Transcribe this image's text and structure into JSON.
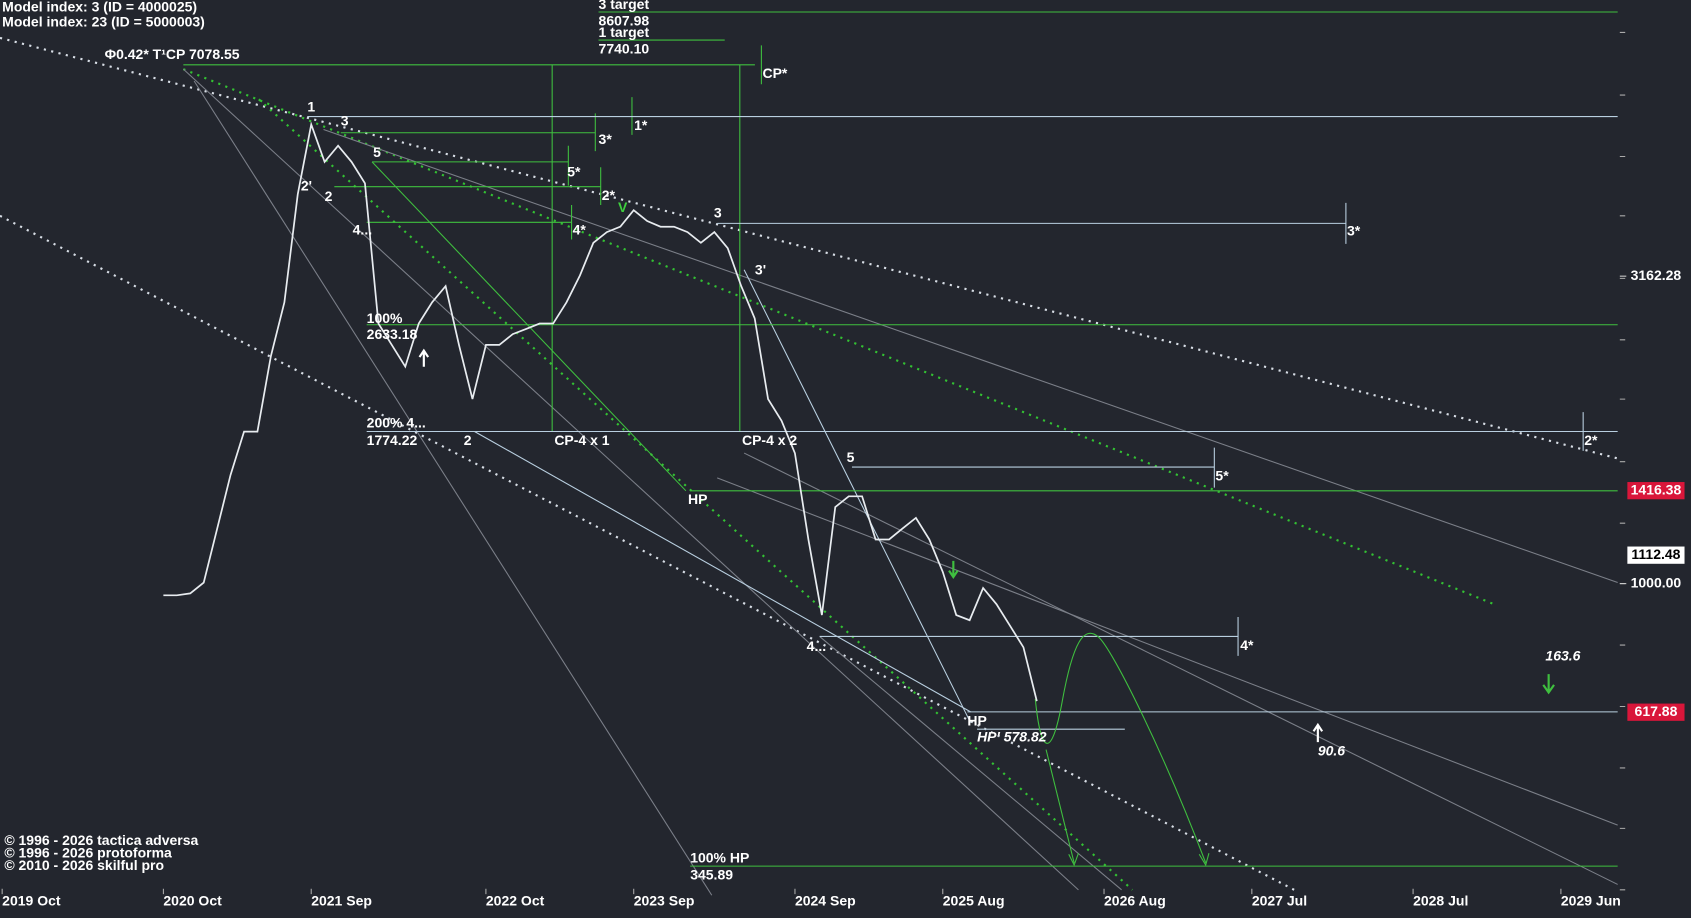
{
  "chart_data": {
    "type": "line",
    "log_scale": true,
    "color": "#e8ecf0",
    "xlim": [
      "2019-10",
      "2029-10"
    ],
    "xticks": [
      {
        "value": "2019-10",
        "label": "2019 Oct"
      },
      {
        "value": "2020-10",
        "label": "2020 Oct"
      },
      {
        "value": "2021-09",
        "label": "2021 Sep"
      },
      {
        "value": "2022-10",
        "label": "2022 Oct"
      },
      {
        "value": "2023-09",
        "label": "2023 Sep"
      },
      {
        "value": "2024-09",
        "label": "2024 Sep"
      },
      {
        "value": "2025-08",
        "label": "2025 Aug"
      },
      {
        "value": "2026-08",
        "label": "2026 Aug"
      },
      {
        "value": "2027-07",
        "label": "2027 Jul"
      },
      {
        "value": "2028-07",
        "label": "2028 Jul"
      },
      {
        "value": "2029-06",
        "label": "2029 Jun"
      }
    ],
    "ylim": [
      319,
      8890
    ],
    "yticks": [
      3162.28,
      {
        "value": 1000,
        "label": "1000.00"
      }
    ],
    "price_tags": [
      {
        "value": 1416.38,
        "color": "#d9163a"
      },
      {
        "value": 1112.48,
        "color": "#ffffff"
      },
      {
        "value": 617.88,
        "color": "#d9163a"
      }
    ],
    "x": [
      "2020-10",
      "2020-11",
      "2020-12",
      "2021-01",
      "2021-02",
      "2021-03",
      "2021-04",
      "2021-05",
      "2021-06",
      "2021-07",
      "2021-08",
      "2021-09",
      "2021-10",
      "2021-11",
      "2021-12",
      "2022-01",
      "2022-02",
      "2022-03",
      "2022-04",
      "2022-05",
      "2022-06",
      "2022-07",
      "2022-08",
      "2022-09",
      "2022-10",
      "2022-11",
      "2022-12",
      "2023-01",
      "2023-02",
      "2023-03",
      "2023-04",
      "2023-05",
      "2023-06",
      "2023-07",
      "2023-08",
      "2023-09",
      "2023-10",
      "2023-11",
      "2023-12",
      "2024-01",
      "2024-02",
      "2024-03",
      "2024-04",
      "2024-05",
      "2024-06",
      "2024-07",
      "2024-08",
      "2024-09",
      "2024-10",
      "2024-11",
      "2024-12",
      "2025-01",
      "2025-02",
      "2025-03",
      "2025-04",
      "2025-05",
      "2025-06",
      "2025-07",
      "2025-08",
      "2025-09",
      "2025-10",
      "2025-11",
      "2025-12",
      "2026-01",
      "2026-02",
      "2026-03"
    ],
    "values": [
      957,
      957,
      964,
      1004,
      1229,
      1503,
      1767,
      1767,
      2345,
      2867,
      4297,
      5580,
      4851,
      5153,
      4851,
      4478,
      2648,
      2445,
      2254,
      2648,
      2867,
      3047,
      2445,
      1996,
      2445,
      2445,
      2545,
      2595,
      2648,
      2648,
      2867,
      3172,
      3584,
      3730,
      3805,
      4048,
      3888,
      3805,
      3805,
      3730,
      3584,
      3730,
      3512,
      3047,
      2700,
      1996,
      1840,
      1630,
      1180,
      889,
      1332,
      1387,
      1387,
      1180,
      1180,
      1229,
      1279,
      1180,
      1045,
      889,
      872,
      984,
      926,
      854,
      788,
      644
    ],
    "annotations": [
      "3 target",
      "8607.98",
      "1 target",
      "7740.10",
      "Φ0.42* T¹CP  7078.55",
      "CP*",
      "1",
      "3",
      "5",
      "1*",
      "3*",
      "5*",
      "2*",
      "4*",
      "2'",
      "2",
      "4...",
      "V",
      "3",
      "3'",
      "3*",
      "100%",
      "2633.18",
      "200%  4...",
      "1774.22",
      "2",
      "CP-4 x 1",
      "CP-4 x 2",
      "2*",
      "5",
      "5*",
      "HP",
      "4...",
      "4*",
      "HP",
      "HP' 578.82",
      "163.6",
      "90.6",
      "100% HP",
      "345.89"
    ],
    "model_info": [
      "Model index: 3  (ID = 4000025)",
      "Model index: 23  (ID = 5000003)"
    ],
    "copyright": [
      "© 1996 - 2026 tactica adversa",
      "© 1996 - 2026 protoforma",
      "© 2010 - 2026 skilful pro"
    ]
  }
}
